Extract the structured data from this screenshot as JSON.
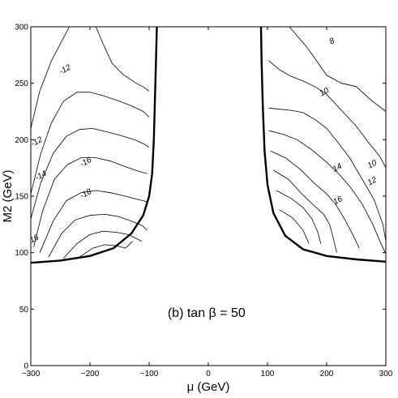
{
  "chart_data": {
    "type": "contour",
    "title": "",
    "xlabel": "μ (GeV)",
    "ylabel": "M2 (GeV)",
    "xlim": [
      -300,
      300
    ],
    "ylim": [
      0,
      300
    ],
    "x_ticks": [
      -300,
      -200,
      -100,
      0,
      100,
      200,
      300
    ],
    "x_tick_labels": [
      "−300",
      "−200",
      "−100",
      "0",
      "100",
      "200",
      "300"
    ],
    "y_ticks": [
      0,
      50,
      100,
      150,
      200,
      250,
      300
    ],
    "y_tick_labels": [
      "0",
      "50",
      "100",
      "150",
      "200",
      "250",
      "300"
    ],
    "annotation": "(b) tan β = 50",
    "boundary_left": [
      [
        -300,
        91
      ],
      [
        -250,
        93
      ],
      [
        -200,
        97
      ],
      [
        -160,
        104
      ],
      [
        -130,
        117
      ],
      [
        -110,
        133
      ],
      [
        -100,
        150
      ],
      [
        -95,
        170
      ],
      [
        -92,
        200
      ],
      [
        -90,
        240
      ],
      [
        -88,
        280
      ],
      [
        -87,
        300
      ]
    ],
    "boundary_right": [
      [
        89,
        300
      ],
      [
        90,
        270
      ],
      [
        92,
        230
      ],
      [
        95,
        190
      ],
      [
        100,
        160
      ],
      [
        110,
        135
      ],
      [
        130,
        115
      ],
      [
        160,
        103
      ],
      [
        200,
        97
      ],
      [
        250,
        94
      ],
      [
        300,
        92
      ]
    ],
    "contours_left": [
      {
        "label": "-12",
        "points": [
          [
            -300,
            210
          ],
          [
            -285,
            243
          ],
          [
            -265,
            270
          ],
          [
            -245,
            290
          ],
          [
            -235,
            300
          ]
        ]
      },
      {
        "label": "-12",
        "points": [
          [
            -190,
            300
          ],
          [
            -178,
            285
          ],
          [
            -163,
            268
          ],
          [
            -145,
            258
          ],
          [
            -125,
            251
          ],
          [
            -108,
            246
          ],
          [
            -100,
            243
          ]
        ]
      },
      {
        "label": "-12",
        "points": [
          [
            -300,
            152
          ],
          [
            -283,
            188
          ],
          [
            -265,
            215
          ],
          [
            -245,
            234
          ],
          [
            -222,
            242
          ],
          [
            -200,
            242
          ],
          [
            -178,
            239
          ],
          [
            -155,
            235
          ],
          [
            -130,
            230
          ],
          [
            -110,
            225
          ],
          [
            -100,
            220
          ]
        ]
      },
      {
        "label": "-14",
        "points": [
          [
            -300,
            130
          ],
          [
            -283,
            162
          ],
          [
            -262,
            188
          ],
          [
            -240,
            203
          ],
          [
            -218,
            209
          ],
          [
            -196,
            210
          ],
          [
            -172,
            207
          ],
          [
            -150,
            204
          ],
          [
            -125,
            200
          ],
          [
            -108,
            196
          ],
          [
            -100,
            193
          ]
        ]
      },
      {
        "label": "-16",
        "points": [
          [
            -295,
            105
          ],
          [
            -280,
            137
          ],
          [
            -260,
            165
          ],
          [
            -238,
            178
          ],
          [
            -215,
            184
          ],
          [
            -190,
            184
          ],
          [
            -165,
            181
          ],
          [
            -140,
            176
          ],
          [
            -118,
            172
          ],
          [
            -103,
            170
          ]
        ]
      },
      {
        "label": "-18",
        "points": [
          [
            -285,
            100
          ],
          [
            -262,
            128
          ],
          [
            -240,
            146
          ],
          [
            -215,
            153
          ],
          [
            -190,
            155
          ],
          [
            -165,
            153
          ],
          [
            -140,
            150
          ],
          [
            -118,
            147
          ],
          [
            -103,
            145
          ]
        ]
      },
      {
        "label": "",
        "points": [
          [
            -270,
            96
          ],
          [
            -248,
            117
          ],
          [
            -225,
            129
          ],
          [
            -200,
            133
          ],
          [
            -175,
            134
          ],
          [
            -152,
            132
          ],
          [
            -130,
            128
          ],
          [
            -112,
            124
          ],
          [
            -104,
            120
          ]
        ]
      },
      {
        "label": "",
        "points": [
          [
            -245,
            95
          ],
          [
            -222,
            108
          ],
          [
            -200,
            116
          ],
          [
            -178,
            119
          ],
          [
            -155,
            118
          ],
          [
            -135,
            116
          ],
          [
            -120,
            112
          ],
          [
            -112,
            110
          ]
        ]
      },
      {
        "label": "",
        "points": [
          [
            -218,
            96
          ],
          [
            -195,
            104
          ],
          [
            -175,
            107
          ],
          [
            -155,
            106
          ],
          [
            -140,
            104
          ],
          [
            -128,
            110
          ]
        ]
      }
    ],
    "contours_right": [
      {
        "label": "8",
        "points": [
          [
            137,
            300
          ],
          [
            150,
            292
          ],
          [
            165,
            283
          ],
          [
            180,
            272
          ],
          [
            200,
            257
          ],
          [
            225,
            250
          ],
          [
            250,
            247
          ],
          [
            275,
            235
          ],
          [
            300,
            225
          ]
        ]
      },
      {
        "label": "10",
        "points": [
          [
            102,
            270
          ],
          [
            120,
            262
          ],
          [
            140,
            256
          ],
          [
            160,
            252
          ],
          [
            180,
            247
          ],
          [
            200,
            240
          ],
          [
            225,
            226
          ],
          [
            250,
            212
          ],
          [
            270,
            198
          ],
          [
            290,
            185
          ],
          [
            300,
            175
          ]
        ]
      },
      {
        "label": "10",
        "points": [
          [
            102,
            228
          ],
          [
            120,
            227
          ],
          [
            140,
            226
          ],
          [
            160,
            224
          ],
          [
            180,
            218
          ],
          [
            200,
            210
          ],
          [
            220,
            197
          ],
          [
            240,
            183
          ],
          [
            260,
            165
          ],
          [
            280,
            147
          ],
          [
            295,
            125
          ],
          [
            300,
            110
          ]
        ]
      },
      {
        "label": "12",
        "points": [
          [
            102,
            208
          ],
          [
            125,
            205
          ],
          [
            150,
            200
          ],
          [
            175,
            191
          ],
          [
            200,
            180
          ],
          [
            220,
            170
          ],
          [
            240,
            158
          ],
          [
            260,
            143
          ],
          [
            278,
            125
          ],
          [
            290,
            110
          ],
          [
            300,
            99
          ]
        ]
      },
      {
        "label": "14",
        "points": [
          [
            105,
            190
          ],
          [
            130,
            184
          ],
          [
            155,
            174
          ],
          [
            180,
            161
          ],
          [
            200,
            152
          ],
          [
            215,
            143
          ],
          [
            230,
            130
          ],
          [
            245,
            115
          ],
          [
            255,
            104
          ]
        ]
      },
      {
        "label": "16",
        "points": [
          [
            110,
            173
          ],
          [
            135,
            165
          ],
          [
            160,
            151
          ],
          [
            180,
            141
          ],
          [
            195,
            134
          ],
          [
            205,
            125
          ],
          [
            212,
            111
          ],
          [
            217,
            100
          ]
        ]
      },
      {
        "label": "",
        "points": [
          [
            115,
            155
          ],
          [
            140,
            148
          ],
          [
            160,
            140
          ],
          [
            175,
            130
          ],
          [
            185,
            118
          ],
          [
            190,
            108
          ]
        ]
      },
      {
        "label": "",
        "points": [
          [
            120,
            138
          ],
          [
            142,
            131
          ],
          [
            160,
            120
          ],
          [
            170,
            108
          ]
        ]
      }
    ],
    "contour_label_positions": [
      {
        "text": "-12",
        "x": -242,
        "y": 262
      },
      {
        "text": "-12",
        "x": -290,
        "y": 198
      },
      {
        "text": "-14",
        "x": -283,
        "y": 168
      },
      {
        "text": "-16",
        "x": -207,
        "y": 180
      },
      {
        "text": "-18",
        "x": -207,
        "y": 152
      },
      {
        "text": "16",
        "x": -294,
        "y": 112
      },
      {
        "text": "8",
        "x": 209,
        "y": 287
      },
      {
        "text": "10",
        "x": 196,
        "y": 242
      },
      {
        "text": "10",
        "x": 277,
        "y": 178
      },
      {
        "text": "12",
        "x": 277,
        "y": 163
      },
      {
        "text": "14",
        "x": 218,
        "y": 175
      },
      {
        "text": "16",
        "x": 219,
        "y": 146
      }
    ]
  }
}
